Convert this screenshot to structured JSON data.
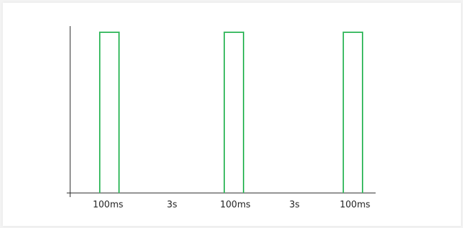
{
  "colors": {
    "pulse": "#3dbb64",
    "axis": "#222222",
    "text": "#222222",
    "background": "#ffffff"
  },
  "labels": {
    "pulse_1": "100ms",
    "gap_1": "3s",
    "pulse_2": "100ms",
    "gap_2": "3s",
    "pulse_3": "100ms"
  }
}
